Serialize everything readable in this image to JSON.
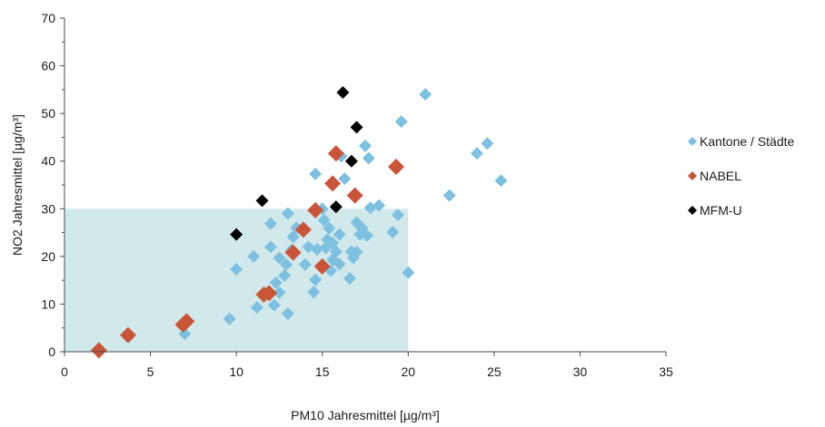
{
  "chart_data": {
    "type": "scatter",
    "xlabel": "PM10 Jahresmittel [µg/m³]",
    "ylabel": "NO2 Jahresmittel [µg/m³]",
    "xlim": [
      0,
      35
    ],
    "ylim": [
      0,
      70
    ],
    "x_ticks": [
      0,
      5,
      10,
      15,
      20,
      25,
      30,
      35
    ],
    "y_ticks": [
      0,
      10,
      20,
      30,
      40,
      50,
      60,
      70
    ],
    "x_tick_labels": [
      "0",
      "5",
      "10",
      "15",
      "20",
      "25",
      "30",
      "35"
    ],
    "y_tick_labels": [
      "0",
      "10",
      "20",
      "30",
      "40",
      "50",
      "60",
      "70"
    ],
    "grid": false,
    "legend_position": "right",
    "limit_area": {
      "x": [
        0,
        20
      ],
      "y": [
        0,
        30
      ],
      "color": "#d1e9ea"
    },
    "series": [
      {
        "name": "Kantone / Städte",
        "color": "#7fbfe0",
        "marker": "diamond",
        "points": [
          [
            7.0,
            3.8
          ],
          [
            9.6,
            6.9
          ],
          [
            10.0,
            17.3
          ],
          [
            11.0,
            20.0
          ],
          [
            11.2,
            9.3
          ],
          [
            12.0,
            26.9
          ],
          [
            12.0,
            22.0
          ],
          [
            12.3,
            14.5
          ],
          [
            12.5,
            12.4
          ],
          [
            12.5,
            19.7
          ],
          [
            12.2,
            9.8
          ],
          [
            12.8,
            16.0
          ],
          [
            12.9,
            18.3
          ],
          [
            13.0,
            29.0
          ],
          [
            13.0,
            8.0
          ],
          [
            13.2,
            21.3
          ],
          [
            13.3,
            24.1
          ],
          [
            13.5,
            26.0
          ],
          [
            14.0,
            18.3
          ],
          [
            14.2,
            22.0
          ],
          [
            14.5,
            12.5
          ],
          [
            14.6,
            15.1
          ],
          [
            14.7,
            21.5
          ],
          [
            14.6,
            37.3
          ],
          [
            15.0,
            30.0
          ],
          [
            15.1,
            27.6
          ],
          [
            15.2,
            21.8
          ],
          [
            15.3,
            23.5
          ],
          [
            15.4,
            25.9
          ],
          [
            15.5,
            17.0
          ],
          [
            15.6,
            19.3
          ],
          [
            15.6,
            22.8
          ],
          [
            15.8,
            21.0
          ],
          [
            16.0,
            24.6
          ],
          [
            16.0,
            18.4
          ],
          [
            16.1,
            41.0
          ],
          [
            16.3,
            36.3
          ],
          [
            16.6,
            15.4
          ],
          [
            16.7,
            21.0
          ],
          [
            16.8,
            19.7
          ],
          [
            17.0,
            27.1
          ],
          [
            17.0,
            20.9
          ],
          [
            17.2,
            24.6
          ],
          [
            17.3,
            26.0
          ],
          [
            17.5,
            43.2
          ],
          [
            17.6,
            24.4
          ],
          [
            17.7,
            40.6
          ],
          [
            17.8,
            30.2
          ],
          [
            18.3,
            30.7
          ],
          [
            19.1,
            25.1
          ],
          [
            19.4,
            28.7
          ],
          [
            19.6,
            48.3
          ],
          [
            20.0,
            16.6
          ],
          [
            21.0,
            54.0
          ],
          [
            22.4,
            32.8
          ],
          [
            24.0,
            41.6
          ],
          [
            24.6,
            43.7
          ],
          [
            25.4,
            35.9
          ],
          [
            16.9,
            33.1
          ]
        ]
      },
      {
        "name": "NABEL",
        "color": "#c8553a",
        "marker": "diamond",
        "points": [
          [
            2.0,
            0.3
          ],
          [
            3.7,
            3.5
          ],
          [
            6.9,
            5.7
          ],
          [
            7.1,
            6.4
          ],
          [
            11.6,
            12.0
          ],
          [
            11.9,
            12.3
          ],
          [
            13.3,
            20.8
          ],
          [
            13.9,
            25.6
          ],
          [
            14.6,
            29.7
          ],
          [
            15.0,
            17.9
          ],
          [
            15.6,
            35.3
          ],
          [
            15.8,
            41.6
          ],
          [
            16.9,
            32.8
          ],
          [
            19.3,
            38.8
          ]
        ]
      },
      {
        "name": "MFM-U",
        "color": "#000000",
        "marker": "diamond",
        "points": [
          [
            10.0,
            24.6
          ],
          [
            11.5,
            31.7
          ],
          [
            15.8,
            30.4
          ],
          [
            16.2,
            54.4
          ],
          [
            16.7,
            40.0
          ],
          [
            17.0,
            47.1
          ]
        ]
      }
    ]
  }
}
